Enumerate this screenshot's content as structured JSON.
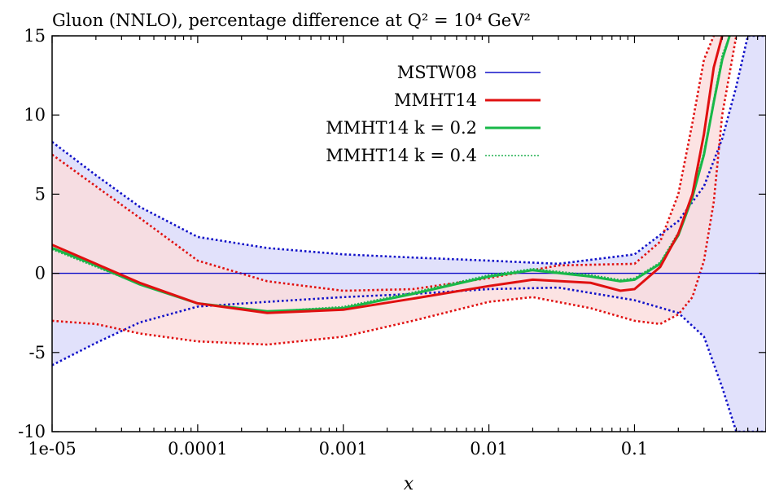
{
  "chart_data": {
    "type": "line",
    "title": "Gluon (NNLO), percentage difference at Q² = 10⁴ GeV²",
    "xlabel": "x",
    "ylabel": "",
    "xscale": "log",
    "xlim": [
      1e-05,
      0.8
    ],
    "ylim": [
      -10,
      15
    ],
    "x_ticks": [
      {
        "value": 1e-05,
        "label": "1e-05"
      },
      {
        "value": 0.0001,
        "label": "0.0001"
      },
      {
        "value": 0.001,
        "label": "0.001"
      },
      {
        "value": 0.01,
        "label": "0.01"
      },
      {
        "value": 0.1,
        "label": "0.1"
      }
    ],
    "y_ticks": [
      {
        "value": -10,
        "label": "-10"
      },
      {
        "value": -5,
        "label": "-5"
      },
      {
        "value": 0,
        "label": "0"
      },
      {
        "value": 5,
        "label": "5"
      },
      {
        "value": 10,
        "label": "10"
      },
      {
        "value": 15,
        "label": "15"
      }
    ],
    "grid": false,
    "legend_position": "top-center",
    "colors": {
      "mstw": "#1010c8",
      "mstw_band": "#dcdcfa",
      "mmht": "#e01010",
      "mmht_band": "#fbdcdc",
      "k02": "#18b848",
      "k04": "#20b050"
    },
    "series": [
      {
        "name": "MSTW08",
        "style": "thin-blue",
        "x": [
          1e-05,
          0.01,
          0.8
        ],
        "y": [
          0,
          0,
          0
        ],
        "band_upper": {
          "x": [
            1e-05,
            2e-05,
            4e-05,
            0.0001,
            0.0003,
            0.001,
            0.003,
            0.01,
            0.03,
            0.1,
            0.2,
            0.3,
            0.4,
            0.5,
            0.6,
            0.7,
            0.8
          ],
          "y": [
            8.3,
            6.2,
            4.2,
            2.3,
            1.6,
            1.2,
            1.0,
            0.8,
            0.6,
            1.2,
            3.3,
            5.5,
            8.5,
            11.8,
            15.0,
            15.0,
            15.0
          ]
        },
        "band_lower": {
          "x": [
            1e-05,
            2e-05,
            4e-05,
            0.0001,
            0.0003,
            0.001,
            0.003,
            0.01,
            0.03,
            0.1,
            0.2,
            0.3,
            0.4,
            0.5,
            0.6,
            0.7,
            0.8
          ],
          "y": [
            -5.8,
            -4.4,
            -3.1,
            -2.1,
            -1.8,
            -1.5,
            -1.3,
            -1.0,
            -0.9,
            -1.7,
            -2.5,
            -4.0,
            -7.2,
            -10.0,
            -10.0,
            -10.0,
            -10.0
          ]
        }
      },
      {
        "name": "MMHT14",
        "style": "thick-red",
        "x": [
          1e-05,
          2e-05,
          4e-05,
          0.0001,
          0.0003,
          0.001,
          0.003,
          0.01,
          0.02,
          0.05,
          0.08,
          0.1,
          0.15,
          0.2,
          0.25,
          0.3,
          0.35,
          0.4
        ],
        "y": [
          1.8,
          0.6,
          -0.6,
          -1.9,
          -2.5,
          -2.3,
          -1.6,
          -0.8,
          -0.4,
          -0.6,
          -1.1,
          -1.0,
          0.4,
          2.5,
          5.0,
          8.8,
          13.0,
          15.0
        ],
        "band_upper": {
          "x": [
            1e-05,
            2e-05,
            4e-05,
            0.0001,
            0.0003,
            0.001,
            0.003,
            0.01,
            0.03,
            0.1,
            0.15,
            0.2,
            0.25,
            0.3,
            0.35
          ],
          "y": [
            7.5,
            5.5,
            3.5,
            0.8,
            -0.5,
            -1.1,
            -1.0,
            -0.3,
            0.5,
            0.6,
            2.0,
            5.0,
            9.5,
            13.5,
            15.0
          ]
        },
        "band_lower": {
          "x": [
            1e-05,
            2e-05,
            4e-05,
            0.0001,
            0.0003,
            0.001,
            0.003,
            0.01,
            0.02,
            0.05,
            0.1,
            0.15,
            0.2,
            0.25,
            0.3,
            0.35,
            0.4,
            0.5
          ],
          "y": [
            -3.0,
            -3.2,
            -3.8,
            -4.3,
            -4.5,
            -4.0,
            -3.0,
            -1.8,
            -1.5,
            -2.2,
            -3.0,
            -3.2,
            -2.6,
            -1.5,
            0.8,
            4.5,
            10.0,
            15.0
          ]
        }
      },
      {
        "name": "MMHT14 k = 0.2",
        "style": "thick-green",
        "x": [
          1e-05,
          2e-05,
          4e-05,
          0.0001,
          0.0003,
          0.001,
          0.003,
          0.01,
          0.02,
          0.05,
          0.08,
          0.1,
          0.15,
          0.2,
          0.25,
          0.3,
          0.35,
          0.4,
          0.45
        ],
        "y": [
          1.6,
          0.5,
          -0.7,
          -1.9,
          -2.4,
          -2.2,
          -1.3,
          -0.2,
          0.2,
          -0.2,
          -0.5,
          -0.4,
          0.6,
          2.4,
          4.8,
          7.5,
          10.8,
          13.5,
          15.0
        ]
      },
      {
        "name": "MMHT14 k = 0.4",
        "style": "dotted-green",
        "x": [
          1e-05,
          2e-05,
          4e-05,
          0.0001,
          0.0003,
          0.001,
          0.003,
          0.01,
          0.02,
          0.05,
          0.08,
          0.1,
          0.15,
          0.2,
          0.25,
          0.3,
          0.35,
          0.4,
          0.45
        ],
        "y": [
          1.5,
          0.4,
          -0.7,
          -1.9,
          -2.4,
          -2.1,
          -1.2,
          -0.1,
          0.3,
          -0.1,
          -0.4,
          -0.3,
          0.7,
          2.6,
          5.0,
          7.7,
          11.0,
          13.8,
          15.0
        ]
      }
    ]
  }
}
